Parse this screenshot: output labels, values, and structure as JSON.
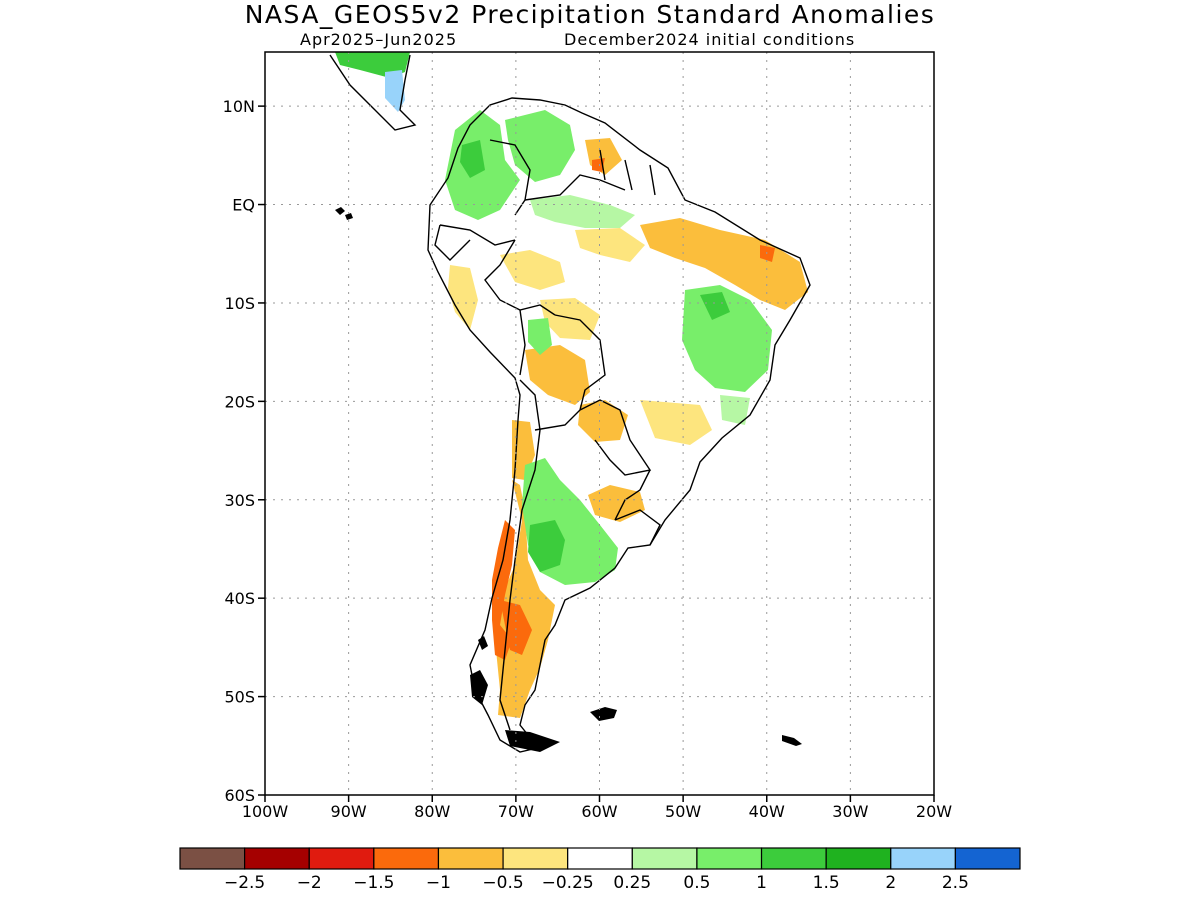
{
  "title": "NASA_GEOS5v2 Precipitation Standard Anomalies",
  "subtitle_left": "Apr2025–Jun2025",
  "subtitle_right": "December2024 initial conditions",
  "map": {
    "lat_labels": [
      "10N",
      "EQ",
      "10S",
      "20S",
      "30S",
      "40S",
      "50S",
      "60S"
    ],
    "lon_labels": [
      "100W",
      "90W",
      "80W",
      "70W",
      "60W",
      "50W",
      "40W",
      "30W",
      "20W"
    ],
    "lat_range": [
      -60,
      15.5
    ],
    "lon_range": [
      -100,
      -20
    ],
    "grid": true
  },
  "colorbar": {
    "colors": [
      "#7b5044",
      "#a50000",
      "#e01b0f",
      "#fb6a0c",
      "#fbbe3c",
      "#fde57e",
      "#ffffff",
      "#b6f7a4",
      "#78ee6a",
      "#3ccc3c",
      "#1fb21f",
      "#98d3fa",
      "#1464d2"
    ],
    "labels": [
      "−2.5",
      "−2",
      "−1.5",
      "−1",
      "−0.5",
      "−0.25",
      "0.25",
      "0.5",
      "1",
      "1.5",
      "2",
      "2.5"
    ]
  }
}
